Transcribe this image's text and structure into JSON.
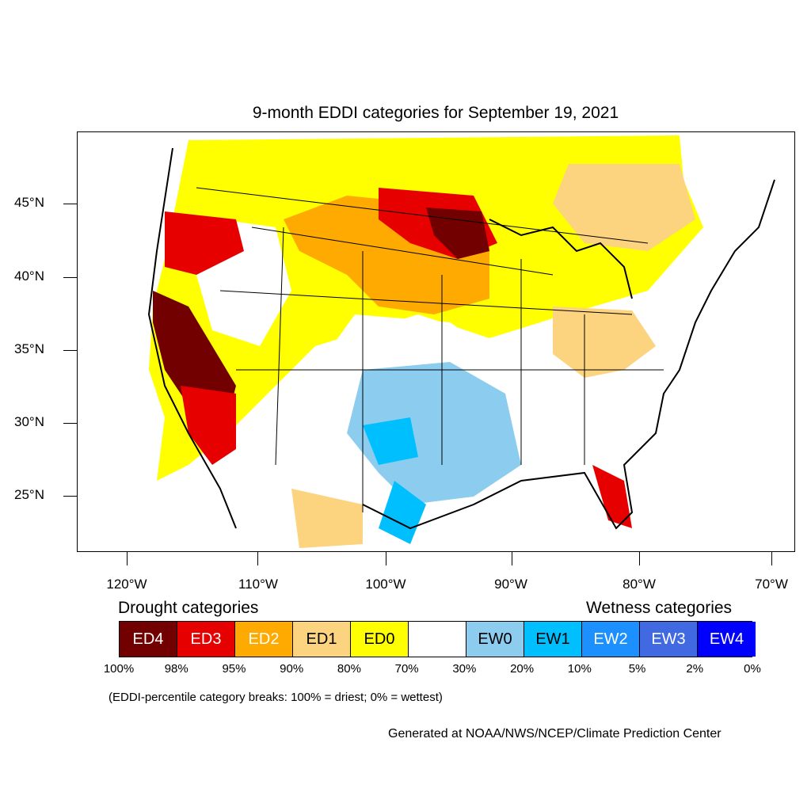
{
  "title": "9-month EDDI categories for September 19, 2021",
  "axes": {
    "lat_labels": [
      "45°N",
      "40°N",
      "35°N",
      "30°N",
      "25°N"
    ],
    "lon_labels": [
      "120°W",
      "110°W",
      "100°W",
      "90°W",
      "80°W",
      "70°W"
    ]
  },
  "legend": {
    "drought_heading": "Drought categories",
    "wetness_heading": "Wetness categories",
    "categories": [
      {
        "label": "ED4",
        "color": "#730000",
        "text_color": "#ffffff"
      },
      {
        "label": "ED3",
        "color": "#e60000",
        "text_color": "#ffffff"
      },
      {
        "label": "ED2",
        "color": "#ffaa00",
        "text_color": "#ffffff"
      },
      {
        "label": "ED1",
        "color": "#fcd37f",
        "text_color": "#000000"
      },
      {
        "label": "ED0",
        "color": "#ffff00",
        "text_color": "#000000"
      },
      {
        "label": "",
        "color": "#ffffff",
        "text_color": "#000000"
      },
      {
        "label": "EW0",
        "color": "#8ccdef",
        "text_color": "#000000"
      },
      {
        "label": "EW1",
        "color": "#00bfff",
        "text_color": "#000000"
      },
      {
        "label": "EW2",
        "color": "#1d90ff",
        "text_color": "#ffffff"
      },
      {
        "label": "EW3",
        "color": "#4169e1",
        "text_color": "#ffffff"
      },
      {
        "label": "EW4",
        "color": "#0000ff",
        "text_color": "#ffffff"
      }
    ],
    "breaks": [
      "100%",
      "98%",
      "95%",
      "90%",
      "80%",
      "70%",
      "30%",
      "20%",
      "10%",
      "5%",
      "2%",
      "0%"
    ]
  },
  "note": "(EDDI-percentile category breaks: 100% = driest; 0% = wettest)",
  "credit": "Generated at NOAA/NWS/NCEP/Climate Prediction Center"
}
